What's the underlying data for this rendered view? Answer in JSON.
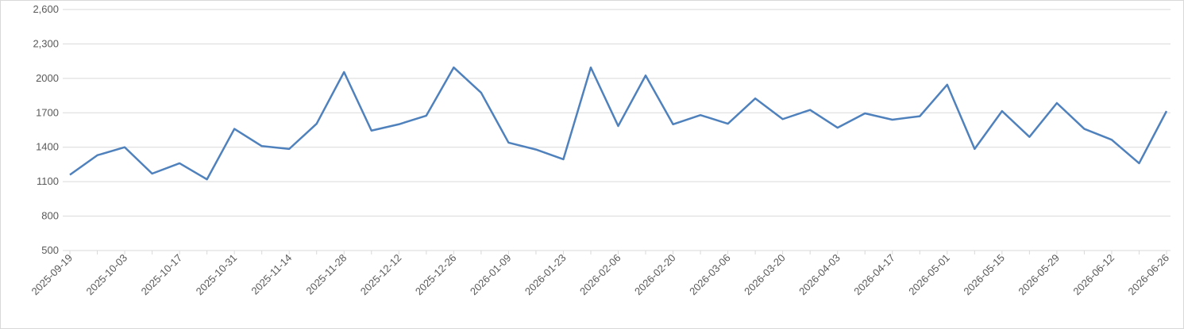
{
  "chart_data": {
    "type": "line",
    "categories": [
      "2025-09-19",
      null,
      "2025-10-03",
      null,
      "2025-10-17",
      null,
      "2025-10-31",
      null,
      "2025-11-14",
      null,
      "2025-11-28",
      null,
      "2025-12-12",
      null,
      "2025-12-26",
      null,
      "2026-01-09",
      null,
      "2026-01-23",
      null,
      "2026-02-06",
      null,
      "2026-02-20",
      null,
      "2026-03-06",
      null,
      "2026-03-20",
      null,
      "2026-04-03",
      null,
      "2026-04-17",
      null,
      "2026-05-01",
      null,
      "2026-05-15",
      null,
      "2026-05-29",
      null,
      "2026-06-12",
      null,
      "2026-06-26"
    ],
    "series": [
      {
        "color": "#4f81bd",
        "values": [
          1160,
          1330,
          1400,
          1170,
          1260,
          1120,
          1560,
          1410,
          1385,
          1605,
          2055,
          1545,
          1600,
          1675,
          2095,
          1875,
          1440,
          1380,
          1295,
          2095,
          1585,
          2025,
          1600,
          1680,
          1605,
          1825,
          1645,
          1725,
          1570,
          1695,
          1640,
          1670,
          1945,
          1385,
          1715,
          1490,
          1785,
          1560,
          1465,
          1260,
          1715
        ]
      }
    ],
    "ylim": [
      500,
      2600
    ],
    "yticks": [
      500,
      800,
      1100,
      1400,
      1700,
      2000,
      {
        "value": 2300,
        "label": "2,300"
      },
      {
        "value": 2600,
        "label": "2,600"
      }
    ],
    "grid": true
  }
}
